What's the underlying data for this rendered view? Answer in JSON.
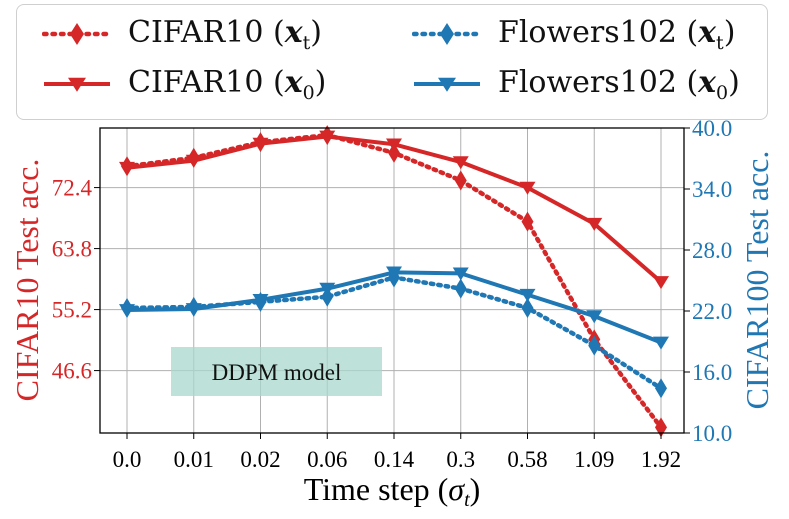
{
  "chart_data": {
    "type": "line",
    "categories": [
      "0.0",
      "0.01",
      "0.02",
      "0.06",
      "0.14",
      "0.3",
      "0.58",
      "1.09",
      "1.92"
    ],
    "xlabel": "Time step (σt)",
    "xlabel_main": "Time step (",
    "xlabel_sym": "σ",
    "xlabel_sub": "t",
    "xlabel_end": ")",
    "ylabel_left": "CIFAR10 Test acc.",
    "ylabel_right": "CIFAR100 Test acc.",
    "yticks_left": [
      "46.6",
      "55.2",
      "63.8",
      "72.4"
    ],
    "yticks_right": [
      "10.0",
      "16.0",
      "22.0",
      "28.0",
      "34.0",
      "40.0"
    ],
    "ylim_left": [
      37.8,
      80.8
    ],
    "ylim_right": [
      10.0,
      40.0
    ],
    "grid": true,
    "legend_position": "top",
    "annotation": "DDPM model",
    "series": [
      {
        "name": "CIFAR10 (x_t)",
        "label_main": "CIFAR10 (",
        "label_var": "x",
        "label_sub": "t",
        "axis": "left",
        "style": "dotted",
        "marker": "diamond",
        "color": "#d62728",
        "values": [
          75.4,
          76.6,
          78.8,
          79.8,
          77.3,
          73.4,
          67.6,
          51.0,
          38.6
        ]
      },
      {
        "name": "CIFAR10 (x_0)",
        "label_main": "CIFAR10 (",
        "label_var": "x",
        "label_sub": "0",
        "axis": "left",
        "style": "solid",
        "marker": "triangle-down",
        "color": "#d62728",
        "values": [
          75.2,
          76.2,
          78.6,
          79.6,
          78.5,
          76.0,
          72.4,
          67.3,
          59.1
        ]
      },
      {
        "name": "Flowers102 (x_t)",
        "label_main": "Flowers102 (",
        "label_var": "x",
        "label_sub": "t",
        "axis": "right",
        "style": "dotted",
        "marker": "diamond",
        "color": "#1f77b4",
        "values": [
          22.3,
          22.4,
          22.9,
          23.4,
          25.3,
          24.2,
          22.3,
          18.6,
          14.4
        ]
      },
      {
        "name": "Flowers102 (x_0)",
        "label_main": "Flowers102 (",
        "label_var": "x",
        "label_sub": "0",
        "axis": "right",
        "style": "solid",
        "marker": "triangle-down",
        "color": "#1f77b4",
        "values": [
          22.1,
          22.2,
          23.1,
          24.2,
          25.8,
          25.7,
          23.6,
          21.5,
          18.9
        ]
      }
    ]
  },
  "colors": {
    "red": "#d62728",
    "blue": "#1f77b4",
    "annotation_fill": "#a8d8cc",
    "grid": "#b0b0b0"
  }
}
